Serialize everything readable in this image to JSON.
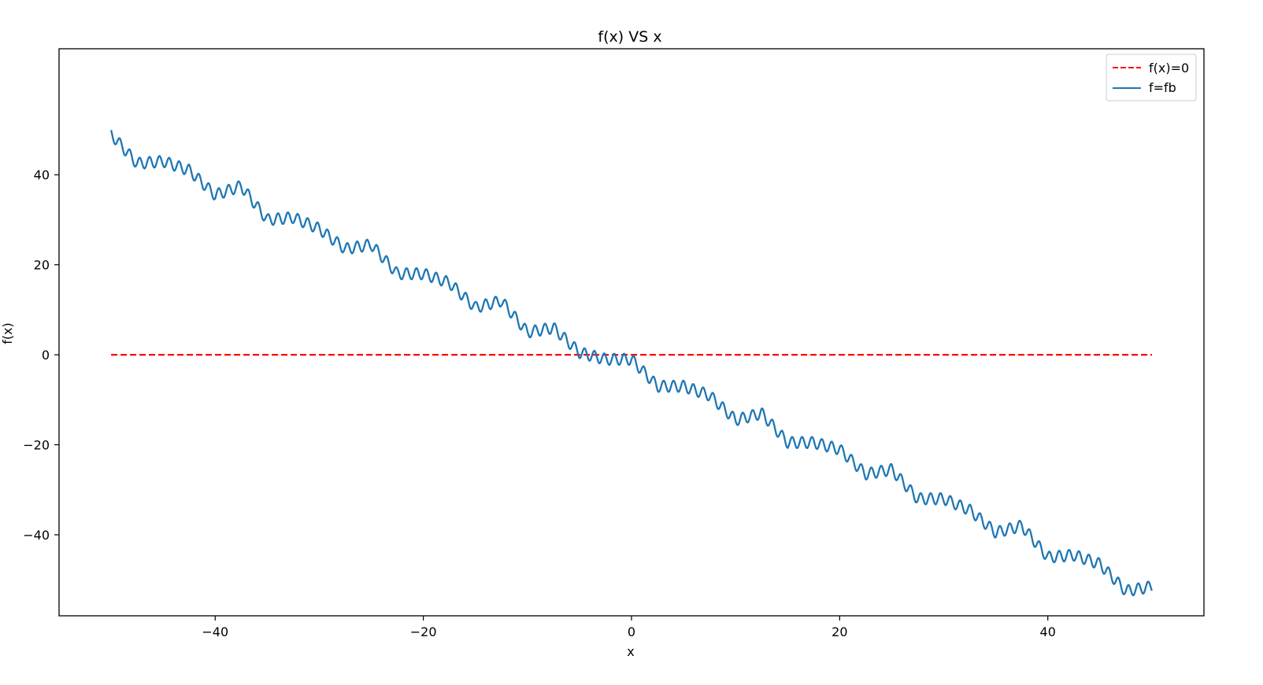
{
  "chart_data": {
    "type": "line",
    "title": "f(x) VS x",
    "xlabel": "x",
    "ylabel": "f(x)",
    "xlim": [
      -55,
      55
    ],
    "ylim": [
      -58,
      68
    ],
    "x_ticks": [
      -40,
      -20,
      0,
      20,
      40
    ],
    "x_tick_labels": [
      "−40",
      "−20",
      "0",
      "20",
      "40"
    ],
    "y_ticks": [
      40,
      20,
      0,
      -20,
      -40
    ],
    "y_tick_labels": [
      "40",
      "20",
      "0",
      "−20",
      "−40"
    ],
    "grid": false,
    "legend_placement": "upper right",
    "series": [
      {
        "name": "f(x)=0",
        "style": "dashed",
        "color": "#ff0000",
        "x": [
          -50,
          50
        ],
        "y": [
          0,
          0
        ]
      },
      {
        "name": "f=fb",
        "style": "solid",
        "color": "#1f77b4",
        "x": [
          -50,
          -47.5,
          -45,
          -42.5,
          -40,
          -37.5,
          -35,
          -32.5,
          -30,
          -27.5,
          -25,
          -22.5,
          -20,
          -17.5,
          -15,
          -12.5,
          -10,
          -7.5,
          -5,
          -2.5,
          0,
          2.5,
          5,
          7.5,
          10,
          12.5,
          15,
          17.5,
          20,
          22.5,
          25,
          27.5,
          30,
          32.5,
          35,
          37.5,
          40,
          42.5,
          45,
          47.5,
          50
        ],
        "y": [
          49.0,
          42.5,
          43.0,
          41.0,
          35.5,
          37.5,
          30.0,
          30.5,
          28.0,
          23.5,
          24.5,
          18.0,
          18.0,
          16.0,
          10.5,
          12.0,
          5.0,
          6.0,
          0.5,
          -1.0,
          -1.0,
          -7.0,
          -7.0,
          -9.0,
          -14.5,
          -13.0,
          -19.5,
          -19.5,
          -21.0,
          -26.5,
          -25.5,
          -32.0,
          -32.0,
          -34.5,
          -39.5,
          -38.0,
          -45.0,
          -44.5,
          -46.5,
          -52.5,
          -51.5
        ]
      }
    ]
  }
}
